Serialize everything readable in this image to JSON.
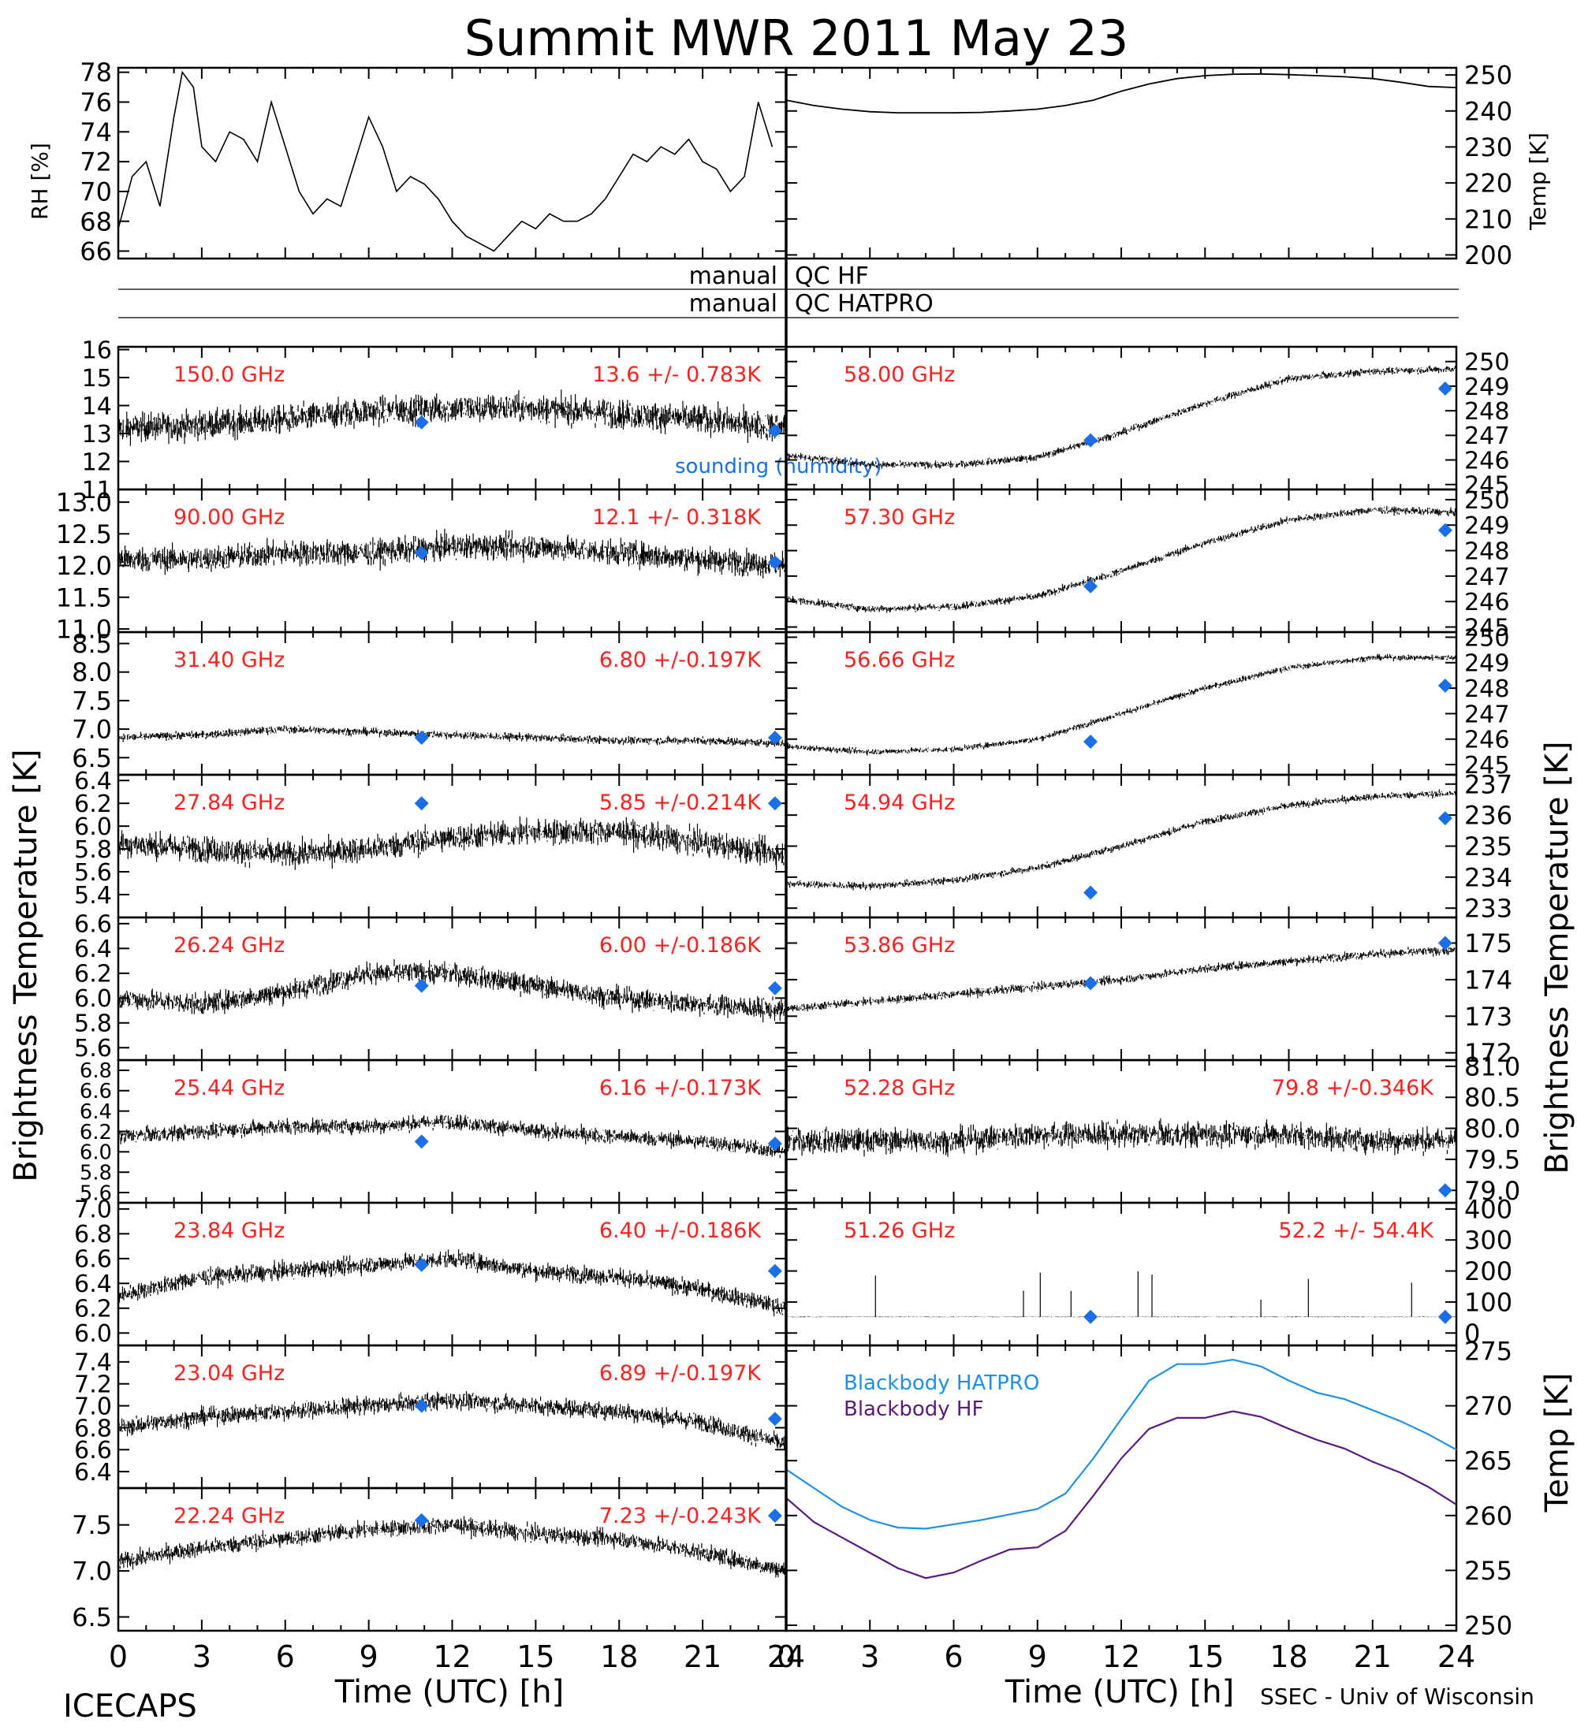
{
  "title": "Summit MWR 2011 May 23",
  "footer": {
    "left": "ICECAPS",
    "right": "SSEC - Univ of Wisconsin"
  },
  "axis_labels": {
    "time": "Time (UTC) [h]",
    "brightness_left": "Brightness Temperature [K]",
    "brightness_right": "Brightness Temperature [K]",
    "rh": "RH [%]",
    "temp": "Temp [K]",
    "bb_temp": "Temp [K]"
  },
  "x_ticks": [
    "0",
    "3",
    "6",
    "9",
    "12",
    "15",
    "18",
    "21",
    "24"
  ],
  "qc": [
    {
      "left": "manual",
      "right": "QC HF"
    },
    {
      "left": "manual",
      "right": "QC HATPRO"
    }
  ],
  "legend": {
    "sounding": "sounding (humidity)",
    "bb_hatpro": "Blackbody HATPRO",
    "bb_hf": "Blackbody HF"
  },
  "colors": {
    "label_red": "#ff2020",
    "sounding_blue": "#1a6fe8",
    "bb_hatpro": "#1f8fe8",
    "bb_hf": "#5a1a80",
    "data": "#000000"
  },
  "chart_data": [
    {
      "type": "line",
      "id": "rh",
      "ylabel": "RH [%]",
      "xlim": [
        0,
        24
      ],
      "ylim": [
        65.5,
        78.3
      ],
      "yticks": [
        "66",
        "68",
        "70",
        "72",
        "74",
        "76",
        "78"
      ],
      "x": [
        0,
        0.5,
        1,
        1.5,
        2,
        2.3,
        2.7,
        3,
        3.5,
        4,
        4.5,
        5,
        5.5,
        6,
        6.5,
        7,
        7.5,
        8,
        8.5,
        9,
        9.5,
        10,
        10.5,
        11,
        11.5,
        12,
        12.5,
        13,
        13.5,
        14,
        14.5,
        15,
        15.5,
        16,
        16.5,
        17,
        17.5,
        18,
        18.5,
        19,
        19.5,
        20,
        20.5,
        21,
        21.5,
        22,
        22.5,
        23,
        23.5
      ],
      "values": [
        67.5,
        71,
        72,
        69,
        75,
        78,
        77,
        73,
        72,
        74,
        73.5,
        72,
        76,
        73,
        70,
        68.5,
        69.5,
        69,
        72,
        75,
        73,
        70,
        71,
        70.5,
        69.5,
        68,
        67,
        66.5,
        66,
        67,
        68,
        67.5,
        68.5,
        68,
        68,
        68.5,
        69.5,
        71,
        72.5,
        72,
        73,
        72.5,
        73.5,
        72,
        71.5,
        70,
        71,
        76,
        73
      ]
    },
    {
      "type": "line",
      "id": "temp",
      "ylabel": "Temp [K]",
      "xlim": [
        0,
        24
      ],
      "ylim": [
        199,
        252
      ],
      "yticks": [
        "200",
        "210",
        "220",
        "230",
        "240",
        "250"
      ],
      "x": [
        0,
        1,
        2,
        3,
        4,
        5,
        6,
        7,
        8,
        9,
        10,
        11,
        12,
        13,
        14,
        15,
        16,
        17,
        18,
        19,
        20,
        21,
        22,
        23,
        24
      ],
      "values": [
        243,
        241.5,
        240.5,
        239.8,
        239.5,
        239.5,
        239.5,
        239.6,
        240,
        240.5,
        241.5,
        243,
        245.5,
        247.5,
        249,
        249.8,
        250.2,
        250.3,
        250.1,
        249.8,
        249.5,
        249,
        248,
        246.8,
        246.5
      ]
    },
    {
      "type": "scatter",
      "id": "ch_150",
      "label": "150.0 GHz",
      "stat": "13.6 +/- 0.783K",
      "ylim": [
        11,
        16.1
      ],
      "yticks": [
        "11",
        "12",
        "13",
        "14",
        "15",
        "16"
      ],
      "base": [
        13.2,
        13.3,
        13.5,
        13.8,
        13.9,
        13.9,
        13.7,
        13.5,
        13.2
      ],
      "noise": 0.9,
      "sounding": [
        [
          10.9,
          13.4
        ],
        [
          23.6,
          13.1
        ]
      ]
    },
    {
      "type": "scatter",
      "id": "ch_90",
      "label": "90.00 GHz",
      "stat": "12.1 +/- 0.318K",
      "ylim": [
        10.95,
        13.2
      ],
      "yticks": [
        "11.0",
        "11.5",
        "12.0",
        "12.5",
        "13.0"
      ],
      "base": [
        12.1,
        12.1,
        12.2,
        12.2,
        12.3,
        12.3,
        12.2,
        12.1,
        12.0
      ],
      "noise": 0.35,
      "sounding": [
        [
          10.9,
          12.2
        ],
        [
          23.6,
          12.05
        ]
      ]
    },
    {
      "type": "scatter",
      "id": "ch_3140",
      "label": "31.40 GHz",
      "stat": "6.80 +/-0.197K",
      "ylim": [
        6.2,
        8.7
      ],
      "yticks": [
        "6.5",
        "7.0",
        "7.5",
        "8.0",
        "8.5"
      ],
      "base": [
        6.85,
        6.9,
        7.0,
        6.95,
        6.9,
        6.85,
        6.8,
        6.8,
        6.75
      ],
      "noise": 0.12,
      "sounding": [
        [
          10.9,
          6.85
        ],
        [
          23.6,
          6.85
        ]
      ]
    },
    {
      "type": "scatter",
      "id": "ch_2784",
      "label": "27.84 GHz",
      "stat": "5.85 +/-0.214K",
      "ylim": [
        5.2,
        6.45
      ],
      "yticks": [
        "5.4",
        "5.6",
        "5.8",
        "6.0",
        "6.2",
        "6.4"
      ],
      "base": [
        5.85,
        5.8,
        5.75,
        5.8,
        5.9,
        5.95,
        5.95,
        5.85,
        5.75
      ],
      "noise": 0.2,
      "sounding": [
        [
          10.9,
          6.2
        ],
        [
          23.6,
          6.2
        ]
      ]
    },
    {
      "type": "scatter",
      "id": "ch_2624",
      "label": "26.24 GHz",
      "stat": "6.00 +/-0.186K",
      "ylim": [
        5.5,
        6.65
      ],
      "yticks": [
        "5.6",
        "5.8",
        "6.0",
        "6.2",
        "6.4",
        "6.6"
      ],
      "base": [
        6.0,
        5.95,
        6.05,
        6.2,
        6.2,
        6.1,
        6.0,
        5.95,
        5.9
      ],
      "noise": 0.15,
      "sounding": [
        [
          10.9,
          6.1
        ],
        [
          23.6,
          6.08
        ]
      ]
    },
    {
      "type": "scatter",
      "id": "ch_2544",
      "label": "25.44 GHz",
      "stat": "6.16 +/-0.173K",
      "ylim": [
        5.5,
        6.9
      ],
      "yticks": [
        "5.6",
        "5.8",
        "6.0",
        "6.2",
        "6.4",
        "6.6",
        "6.8"
      ],
      "base": [
        6.15,
        6.2,
        6.25,
        6.25,
        6.3,
        6.2,
        6.15,
        6.1,
        6.0
      ],
      "noise": 0.13,
      "sounding": [
        [
          10.9,
          6.1
        ],
        [
          23.6,
          6.08
        ]
      ]
    },
    {
      "type": "scatter",
      "id": "ch_2384",
      "label": "23.84 GHz",
      "stat": "6.40 +/-0.186K",
      "ylim": [
        5.9,
        7.05
      ],
      "yticks": [
        "6.0",
        "6.2",
        "6.4",
        "6.6",
        "6.8",
        "7.0"
      ],
      "base": [
        6.3,
        6.45,
        6.5,
        6.55,
        6.6,
        6.5,
        6.45,
        6.35,
        6.2
      ],
      "noise": 0.12,
      "sounding": [
        [
          10.9,
          6.55
        ],
        [
          23.6,
          6.5
        ]
      ]
    },
    {
      "type": "scatter",
      "id": "ch_2304",
      "label": "23.04 GHz",
      "stat": "6.89 +/-0.197K",
      "ylim": [
        6.25,
        7.55
      ],
      "yticks": [
        "6.4",
        "6.6",
        "6.8",
        "7.0",
        "7.2",
        "7.4"
      ],
      "base": [
        6.8,
        6.9,
        6.95,
        7.0,
        7.05,
        7.0,
        6.95,
        6.85,
        6.65
      ],
      "noise": 0.14,
      "sounding": [
        [
          10.9,
          7.0
        ],
        [
          23.6,
          6.88
        ]
      ]
    },
    {
      "type": "scatter",
      "id": "ch_2224",
      "label": "22.24 GHz",
      "stat": "7.23 +/-0.243K",
      "ylim": [
        6.35,
        7.9
      ],
      "yticks": [
        "6.5",
        "7.0",
        "7.5"
      ],
      "base": [
        7.1,
        7.25,
        7.35,
        7.45,
        7.5,
        7.4,
        7.35,
        7.2,
        7.0
      ],
      "noise": 0.16,
      "sounding": [
        [
          10.9,
          7.55
        ],
        [
          23.6,
          7.6
        ]
      ]
    },
    {
      "type": "scatter",
      "id": "ch_5800",
      "label": "58.00 GHz",
      "stat": "",
      "ylim": [
        244.8,
        250.6
      ],
      "yticks": [
        "245",
        "246",
        "247",
        "248",
        "249",
        "250"
      ],
      "base": [
        246.2,
        245.8,
        245.8,
        246.1,
        247.1,
        248.3,
        249.3,
        249.6,
        249.7
      ],
      "noise": 0.25,
      "sounding": [
        [
          10.9,
          246.8
        ],
        [
          23.6,
          248.9
        ]
      ]
    },
    {
      "type": "scatter",
      "id": "ch_5730",
      "label": "57.30 GHz",
      "stat": "",
      "ylim": [
        244.8,
        250.4
      ],
      "yticks": [
        "245",
        "246",
        "247",
        "248",
        "249",
        "250"
      ],
      "base": [
        246.1,
        245.7,
        245.8,
        246.2,
        247.2,
        248.3,
        249.2,
        249.6,
        249.5
      ],
      "noise": 0.25,
      "sounding": [
        [
          10.9,
          246.6
        ],
        [
          23.6,
          248.8
        ]
      ]
    },
    {
      "type": "scatter",
      "id": "ch_5666",
      "label": "56.66 GHz",
      "stat": "",
      "ylim": [
        244.6,
        250.2
      ],
      "yticks": [
        "245",
        "246",
        "247",
        "248",
        "249",
        "250"
      ],
      "base": [
        245.7,
        245.5,
        245.6,
        246.0,
        247.0,
        248.0,
        248.8,
        249.2,
        249.2
      ],
      "noise": 0.2,
      "sounding": [
        [
          10.9,
          245.9
        ],
        [
          23.6,
          248.1
        ]
      ]
    },
    {
      "type": "scatter",
      "id": "ch_5494",
      "label": "54.94 GHz",
      "stat": "",
      "ylim": [
        232.7,
        237.3
      ],
      "yticks": [
        "233",
        "234",
        "235",
        "236",
        "237"
      ],
      "base": [
        233.8,
        233.7,
        233.9,
        234.3,
        235.0,
        235.8,
        236.3,
        236.6,
        236.7
      ],
      "noise": 0.2,
      "sounding": [
        [
          10.9,
          233.5
        ],
        [
          23.6,
          235.9
        ]
      ]
    },
    {
      "type": "scatter",
      "id": "ch_5386",
      "label": "53.86 GHz",
      "stat": "",
      "ylim": [
        171.8,
        175.7
      ],
      "yticks": [
        "172",
        "173",
        "174",
        "175"
      ],
      "base": [
        173.2,
        173.4,
        173.6,
        173.8,
        174.0,
        174.3,
        174.5,
        174.7,
        174.8
      ],
      "noise": 0.2,
      "sounding": [
        [
          10.9,
          173.9
        ],
        [
          23.6,
          175.0
        ]
      ]
    },
    {
      "type": "scatter",
      "id": "ch_5228",
      "label": "52.28 GHz",
      "stat": "79.8 +/-0.346K",
      "ylim": [
        78.8,
        81.1
      ],
      "yticks": [
        "79.0",
        "79.5",
        "80.0",
        "80.5",
        "81.0"
      ],
      "base": [
        79.8,
        79.8,
        79.8,
        79.9,
        79.9,
        79.9,
        79.9,
        79.8,
        79.8
      ],
      "noise": 0.35,
      "sounding": [
        [
          23.6,
          79.0
        ]
      ]
    },
    {
      "type": "scatter",
      "id": "ch_5126",
      "label": "51.26 GHz",
      "stat": "52.2 +/- 54.4K",
      "ylim": [
        -40,
        420
      ],
      "yticks": [
        "0",
        "100",
        "200",
        "300",
        "400"
      ],
      "base": [
        52,
        52,
        52,
        52,
        52,
        52,
        52,
        52,
        52
      ],
      "noise": 2,
      "spikes": true,
      "sounding": [
        [
          10.9,
          52
        ],
        [
          23.6,
          52
        ]
      ]
    },
    {
      "type": "line",
      "id": "blackbody",
      "ylabel": "Temp [K]",
      "xlim": [
        0,
        24
      ],
      "ylim": [
        249.5,
        275.5
      ],
      "yticks": [
        "250",
        "255",
        "260",
        "265",
        "270",
        "275"
      ],
      "x": [
        0,
        1,
        2,
        3,
        4,
        5,
        6,
        7,
        8,
        9,
        10,
        11,
        12,
        13,
        14,
        15,
        16,
        17,
        18,
        19,
        20,
        21,
        22,
        23,
        24
      ],
      "series": [
        {
          "name": "Blackbody HATPRO",
          "values": [
            264.2,
            262.5,
            260.8,
            259.6,
            258.9,
            258.8,
            259.2,
            259.6,
            260.1,
            260.6,
            262.0,
            265.2,
            268.8,
            272.3,
            273.8,
            273.8,
            274.2,
            273.6,
            272.3,
            271.2,
            270.6,
            269.6,
            268.6,
            267.4,
            266.0
          ]
        },
        {
          "name": "Blackbody HF",
          "values": [
            261.6,
            259.4,
            258.0,
            256.6,
            255.2,
            254.3,
            254.8,
            255.9,
            256.9,
            257.1,
            258.6,
            261.8,
            265.2,
            267.9,
            268.9,
            268.9,
            269.5,
            269.0,
            267.9,
            266.9,
            266.1,
            264.9,
            263.9,
            262.6,
            261.0
          ]
        }
      ]
    }
  ]
}
